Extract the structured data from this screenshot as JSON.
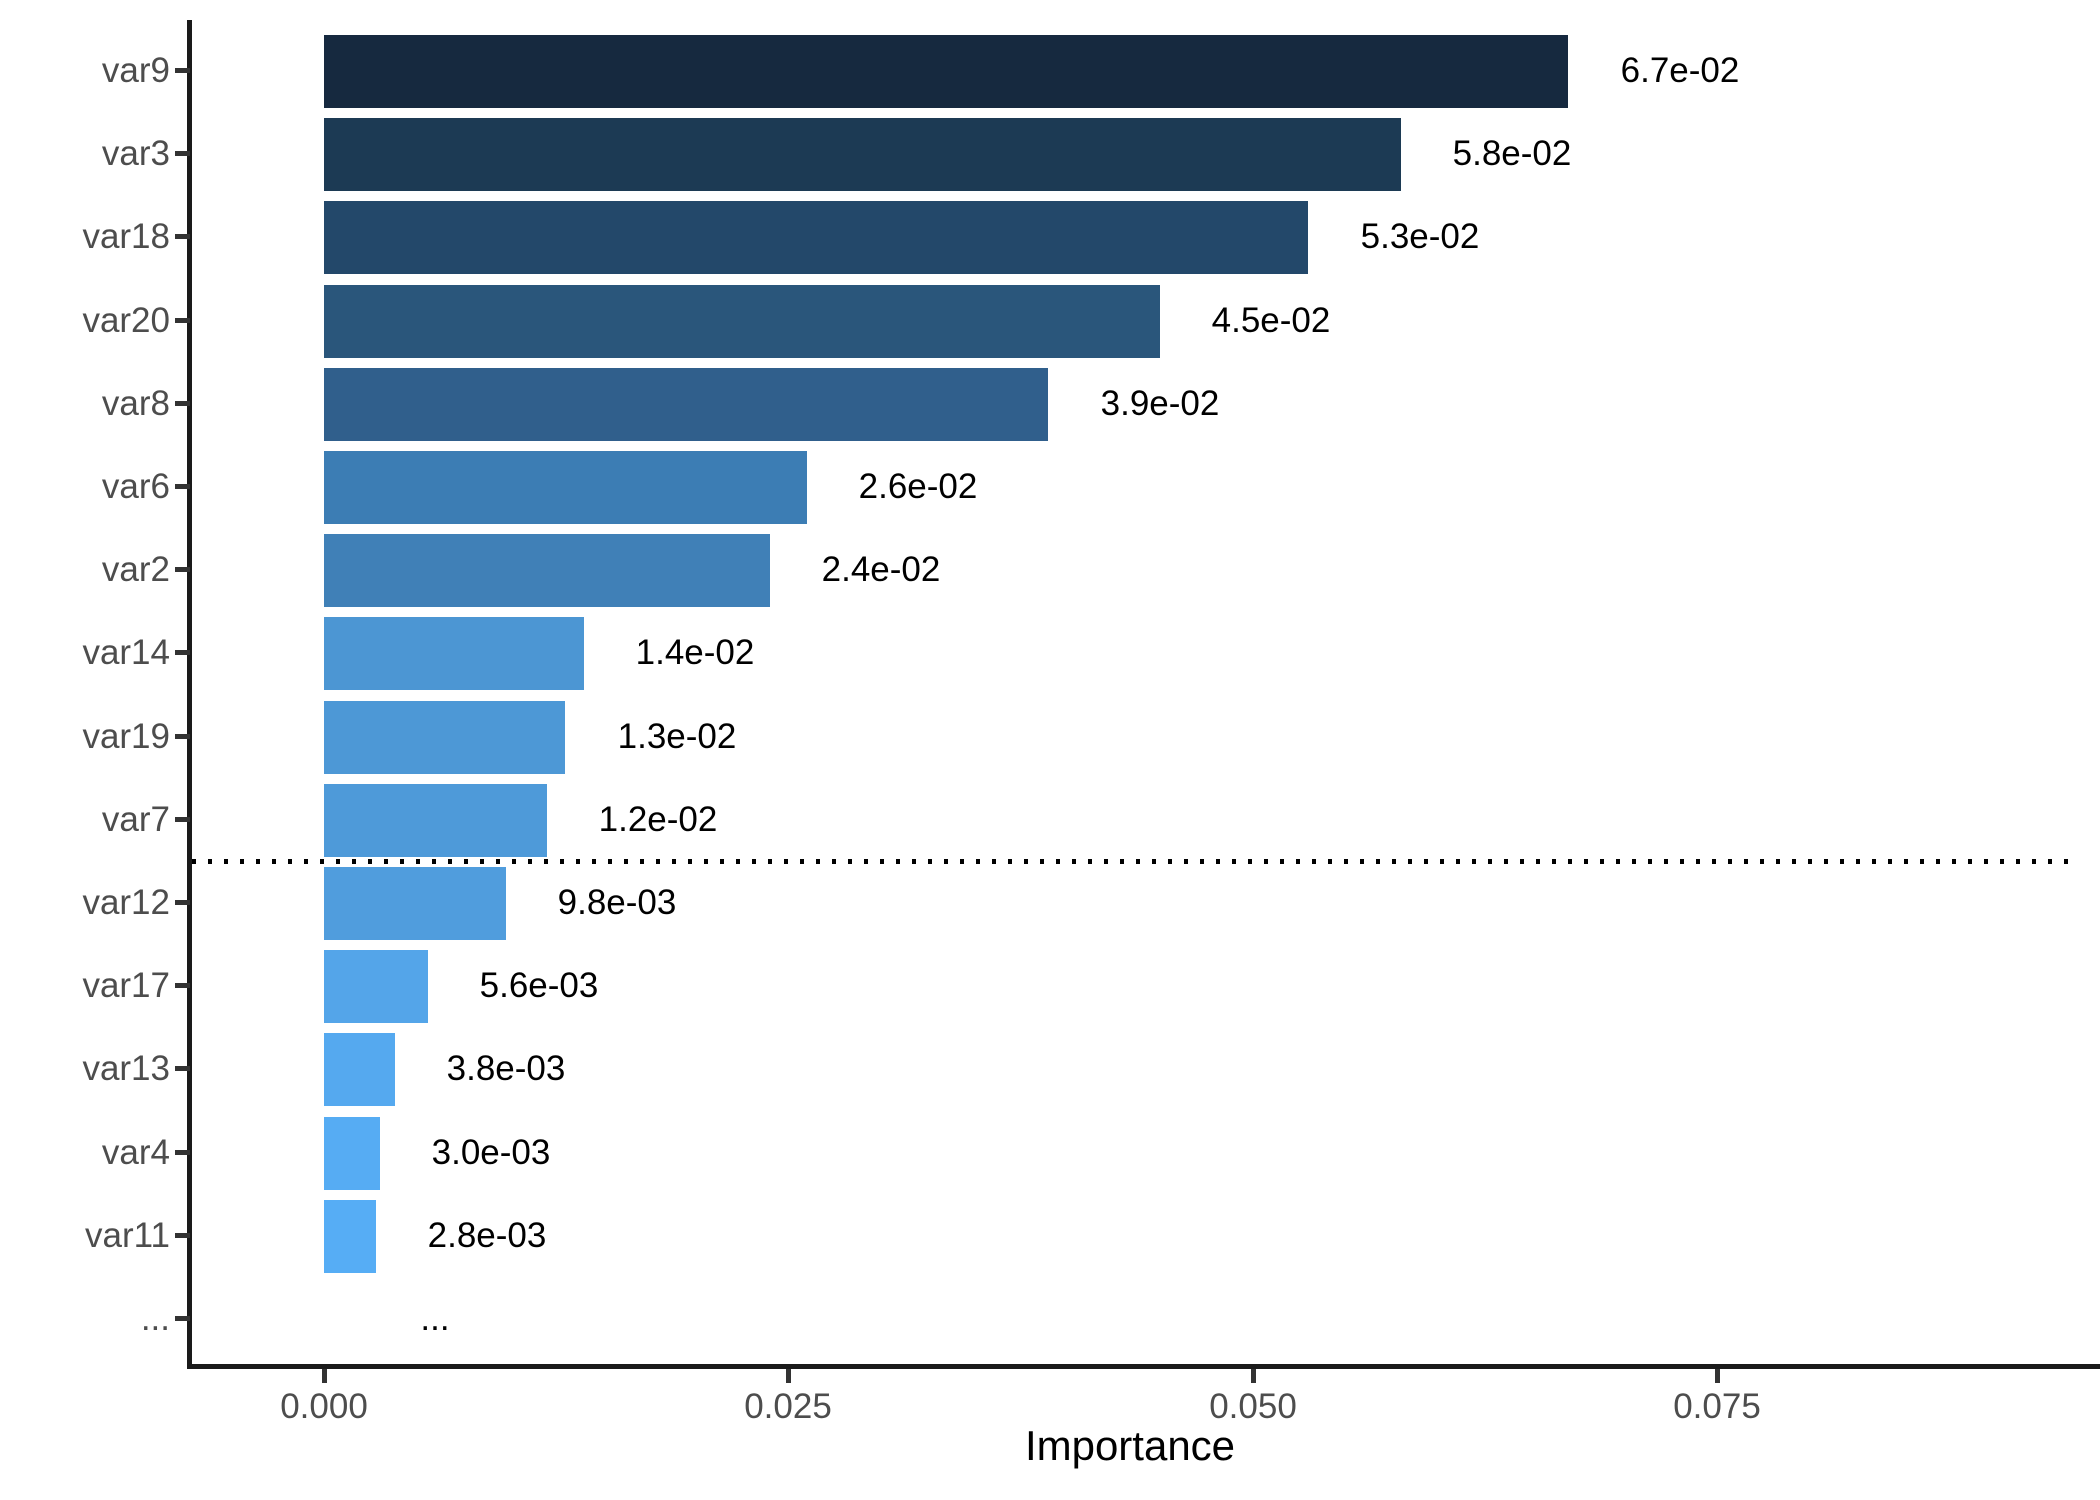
{
  "chart_data": {
    "type": "bar",
    "orientation": "horizontal",
    "title": "",
    "xlabel": "Importance",
    "ylabel": "",
    "x_ticks": [
      {
        "value": 0.0,
        "label": "0.000"
      },
      {
        "value": 0.025,
        "label": "0.025"
      },
      {
        "value": 0.05,
        "label": "0.050"
      },
      {
        "value": 0.075,
        "label": "0.075"
      }
    ],
    "xlim": [
      -0.0073,
      0.0955
    ],
    "grid": "off",
    "legend": "none",
    "rows": [
      {
        "label": "var9",
        "value": 0.067,
        "value_label": "6.7e-02",
        "color": "#16293F"
      },
      {
        "label": "var3",
        "value": 0.058,
        "value_label": "5.8e-02",
        "color": "#1C3A54"
      },
      {
        "label": "var18",
        "value": 0.053,
        "value_label": "5.3e-02",
        "color": "#23486A"
      },
      {
        "label": "var20",
        "value": 0.045,
        "value_label": "4.5e-02",
        "color": "#2A567B"
      },
      {
        "label": "var8",
        "value": 0.039,
        "value_label": "3.9e-02",
        "color": "#305F8C"
      },
      {
        "label": "var6",
        "value": 0.026,
        "value_label": "2.6e-02",
        "color": "#3C7DB4"
      },
      {
        "label": "var2",
        "value": 0.024,
        "value_label": "2.4e-02",
        "color": "#4080B7"
      },
      {
        "label": "var14",
        "value": 0.014,
        "value_label": "1.4e-02",
        "color": "#4C96D3"
      },
      {
        "label": "var19",
        "value": 0.013,
        "value_label": "1.3e-02",
        "color": "#4D98D6"
      },
      {
        "label": "var7",
        "value": 0.012,
        "value_label": "1.2e-02",
        "color": "#4E9AD9"
      },
      {
        "label": "var12",
        "value": 0.0098,
        "value_label": "9.8e-03",
        "color": "#509DDD"
      },
      {
        "label": "var17",
        "value": 0.0056,
        "value_label": "5.6e-03",
        "color": "#54A5E9"
      },
      {
        "label": "var13",
        "value": 0.0038,
        "value_label": "3.8e-03",
        "color": "#55A9EF"
      },
      {
        "label": "var4",
        "value": 0.003,
        "value_label": "3.0e-03",
        "color": "#56ACF3"
      },
      {
        "label": "var11",
        "value": 0.0028,
        "value_label": "2.8e-03",
        "color": "#56ADF5"
      },
      {
        "label": "...",
        "value": null,
        "value_label": "...",
        "color": null
      }
    ],
    "threshold_line": {
      "after_row_index": 9,
      "style": "dotted",
      "color": "#000000"
    },
    "colors": {
      "gradient_low": "#56B1F7",
      "gradient_high": "#132B43",
      "axis_text": "#4d4d4d",
      "value_text": "#000000",
      "axis_line": "#1a1a1a",
      "tick_mark": "#333333",
      "background": "#ffffff"
    }
  }
}
